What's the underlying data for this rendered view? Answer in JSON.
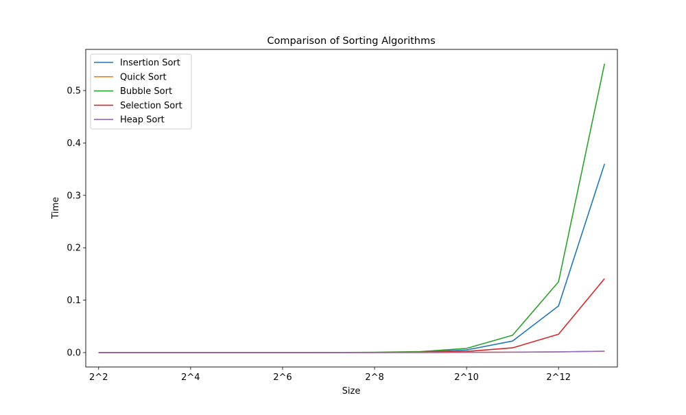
{
  "chart_data": {
    "type": "line",
    "title": "Comparison of Sorting Algorithms",
    "xlabel": "Size",
    "ylabel": "Time",
    "x": [
      2,
      3,
      4,
      5,
      6,
      7,
      8,
      9,
      10,
      11,
      12,
      13
    ],
    "xlim": [
      1.72,
      13.28
    ],
    "x_ticks": [
      {
        "value": 2,
        "label": "2^2"
      },
      {
        "value": 4,
        "label": "2^4"
      },
      {
        "value": 6,
        "label": "2^6"
      },
      {
        "value": 8,
        "label": "2^8"
      },
      {
        "value": 10,
        "label": "2^10"
      },
      {
        "value": 12,
        "label": "2^12"
      }
    ],
    "ylim": [
      -0.0275,
      0.5785
    ],
    "y_ticks": [
      {
        "value": 0.0,
        "label": "0.0"
      },
      {
        "value": 0.1,
        "label": "0.1"
      },
      {
        "value": 0.2,
        "label": "0.2"
      },
      {
        "value": 0.3,
        "label": "0.3"
      },
      {
        "value": 0.4,
        "label": "0.4"
      },
      {
        "value": 0.5,
        "label": "0.5"
      }
    ],
    "grid": false,
    "legend_position": "top-left",
    "series": [
      {
        "name": "Insertion Sort",
        "color": "#1f77b4",
        "values": [
          0.0,
          0.0,
          0.0,
          0.0,
          0.0,
          0.0001,
          0.0003,
          0.0012,
          0.005,
          0.022,
          0.089,
          0.36
        ]
      },
      {
        "name": "Quick Sort",
        "color": "#ff7f0e",
        "values": [
          0.0,
          0.0,
          0.0,
          0.0,
          0.0,
          0.0,
          0.0001,
          0.0002,
          0.0004,
          0.0008,
          0.0013,
          0.0025
        ]
      },
      {
        "name": "Bubble Sort",
        "color": "#2ca02c",
        "values": [
          0.0,
          0.0,
          0.0,
          0.0,
          0.0,
          0.0001,
          0.0005,
          0.0019,
          0.008,
          0.033,
          0.135,
          0.551
        ]
      },
      {
        "name": "Selection Sort",
        "color": "#d62728",
        "values": [
          0.0,
          0.0,
          0.0,
          0.0,
          0.0,
          0.0001,
          0.0002,
          0.0006,
          0.0022,
          0.009,
          0.035,
          0.141
        ]
      },
      {
        "name": "Heap Sort",
        "color": "#9467bd",
        "values": [
          0.0,
          0.0,
          0.0,
          0.0,
          0.0,
          0.0,
          0.0001,
          0.0002,
          0.0004,
          0.0008,
          0.0014,
          0.0026
        ]
      }
    ]
  }
}
